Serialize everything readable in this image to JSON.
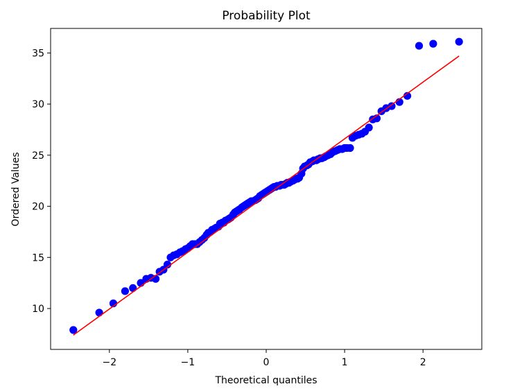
{
  "chart_data": {
    "type": "scatter",
    "title": "Probability Plot",
    "xlabel": "Theoretical quantiles",
    "ylabel": "Ordered Values",
    "xlim": [
      -2.75,
      2.75
    ],
    "ylim": [
      6.0,
      37.4
    ],
    "xticks": [
      -2,
      -1,
      0,
      1,
      2
    ],
    "xtick_labels": [
      "−2",
      "−1",
      "0",
      "1",
      "2"
    ],
    "yticks": [
      10,
      15,
      20,
      25,
      30,
      35
    ],
    "ytick_labels": [
      "10",
      "15",
      "20",
      "25",
      "30",
      "35"
    ],
    "grid": false,
    "point_color": "#0000ff",
    "line_color": "#ff0000",
    "fit_line": {
      "x": [
        -2.46,
        2.46
      ],
      "y": [
        7.4,
        34.7
      ]
    },
    "points": [
      [
        -2.46,
        7.9
      ],
      [
        -2.13,
        9.6
      ],
      [
        -1.95,
        10.5
      ],
      [
        -1.8,
        11.7
      ],
      [
        -1.7,
        12.0
      ],
      [
        -1.6,
        12.5
      ],
      [
        -1.53,
        12.9
      ],
      [
        -1.47,
        13.0
      ],
      [
        -1.41,
        12.9
      ],
      [
        -1.36,
        13.6
      ],
      [
        -1.31,
        13.8
      ],
      [
        -1.26,
        14.3
      ],
      [
        -1.22,
        15.0
      ],
      [
        -1.18,
        15.2
      ],
      [
        -1.14,
        15.3
      ],
      [
        -1.1,
        15.5
      ],
      [
        -1.07,
        15.6
      ],
      [
        -1.03,
        15.8
      ],
      [
        -1.0,
        15.9
      ],
      [
        -0.97,
        16.1
      ],
      [
        -0.94,
        16.3
      ],
      [
        -0.91,
        16.3
      ],
      [
        -0.88,
        16.3
      ],
      [
        -0.85,
        16.5
      ],
      [
        -0.82,
        16.7
      ],
      [
        -0.79,
        16.9
      ],
      [
        -0.76,
        17.2
      ],
      [
        -0.74,
        17.4
      ],
      [
        -0.71,
        17.5
      ],
      [
        -0.69,
        17.7
      ],
      [
        -0.66,
        17.8
      ],
      [
        -0.64,
        17.9
      ],
      [
        -0.61,
        18.0
      ],
      [
        -0.59,
        18.3
      ],
      [
        -0.56,
        18.4
      ],
      [
        -0.54,
        18.4
      ],
      [
        -0.52,
        18.6
      ],
      [
        -0.49,
        18.7
      ],
      [
        -0.47,
        18.8
      ],
      [
        -0.45,
        18.9
      ],
      [
        -0.42,
        19.2
      ],
      [
        -0.4,
        19.4
      ],
      [
        -0.38,
        19.5
      ],
      [
        -0.36,
        19.6
      ],
      [
        -0.34,
        19.7
      ],
      [
        -0.31,
        19.9
      ],
      [
        -0.29,
        20.0
      ],
      [
        -0.27,
        20.1
      ],
      [
        -0.25,
        20.2
      ],
      [
        -0.23,
        20.3
      ],
      [
        -0.21,
        20.4
      ],
      [
        -0.19,
        20.5
      ],
      [
        -0.17,
        20.5
      ],
      [
        -0.14,
        20.6
      ],
      [
        -0.12,
        20.7
      ],
      [
        -0.1,
        20.8
      ],
      [
        -0.08,
        21.0
      ],
      [
        -0.06,
        21.1
      ],
      [
        -0.04,
        21.2
      ],
      [
        -0.02,
        21.3
      ],
      [
        0.0,
        21.4
      ],
      [
        0.02,
        21.5
      ],
      [
        0.04,
        21.6
      ],
      [
        0.06,
        21.7
      ],
      [
        0.08,
        21.8
      ],
      [
        0.1,
        21.9
      ],
      [
        0.12,
        21.9
      ],
      [
        0.14,
        22.0
      ],
      [
        0.17,
        22.0
      ],
      [
        0.19,
        22.1
      ],
      [
        0.21,
        22.1
      ],
      [
        0.23,
        22.1
      ],
      [
        0.25,
        22.2
      ],
      [
        0.27,
        22.3
      ],
      [
        0.29,
        22.3
      ],
      [
        0.31,
        22.4
      ],
      [
        0.34,
        22.5
      ],
      [
        0.36,
        22.6
      ],
      [
        0.38,
        22.7
      ],
      [
        0.4,
        22.7
      ],
      [
        0.42,
        22.8
      ],
      [
        0.45,
        23.2
      ],
      [
        0.47,
        23.7
      ],
      [
        0.49,
        23.9
      ],
      [
        0.52,
        24.0
      ],
      [
        0.54,
        24.1
      ],
      [
        0.56,
        24.3
      ],
      [
        0.59,
        24.4
      ],
      [
        0.61,
        24.5
      ],
      [
        0.64,
        24.5
      ],
      [
        0.66,
        24.6
      ],
      [
        0.69,
        24.7
      ],
      [
        0.71,
        24.7
      ],
      [
        0.74,
        24.8
      ],
      [
        0.76,
        24.9
      ],
      [
        0.79,
        25.0
      ],
      [
        0.82,
        25.1
      ],
      [
        0.85,
        25.3
      ],
      [
        0.88,
        25.4
      ],
      [
        0.91,
        25.5
      ],
      [
        0.94,
        25.6
      ],
      [
        0.97,
        25.6
      ],
      [
        1.0,
        25.7
      ],
      [
        1.03,
        25.7
      ],
      [
        1.07,
        25.7
      ],
      [
        1.1,
        26.7
      ],
      [
        1.14,
        26.9
      ],
      [
        1.18,
        27.0
      ],
      [
        1.22,
        27.1
      ],
      [
        1.26,
        27.3
      ],
      [
        1.31,
        27.7
      ],
      [
        1.36,
        28.5
      ],
      [
        1.41,
        28.6
      ],
      [
        1.47,
        29.3
      ],
      [
        1.53,
        29.6
      ],
      [
        1.6,
        29.8
      ],
      [
        1.7,
        30.2
      ],
      [
        1.8,
        30.8
      ],
      [
        1.95,
        35.7
      ],
      [
        2.13,
        35.9
      ],
      [
        2.46,
        36.1
      ]
    ]
  }
}
